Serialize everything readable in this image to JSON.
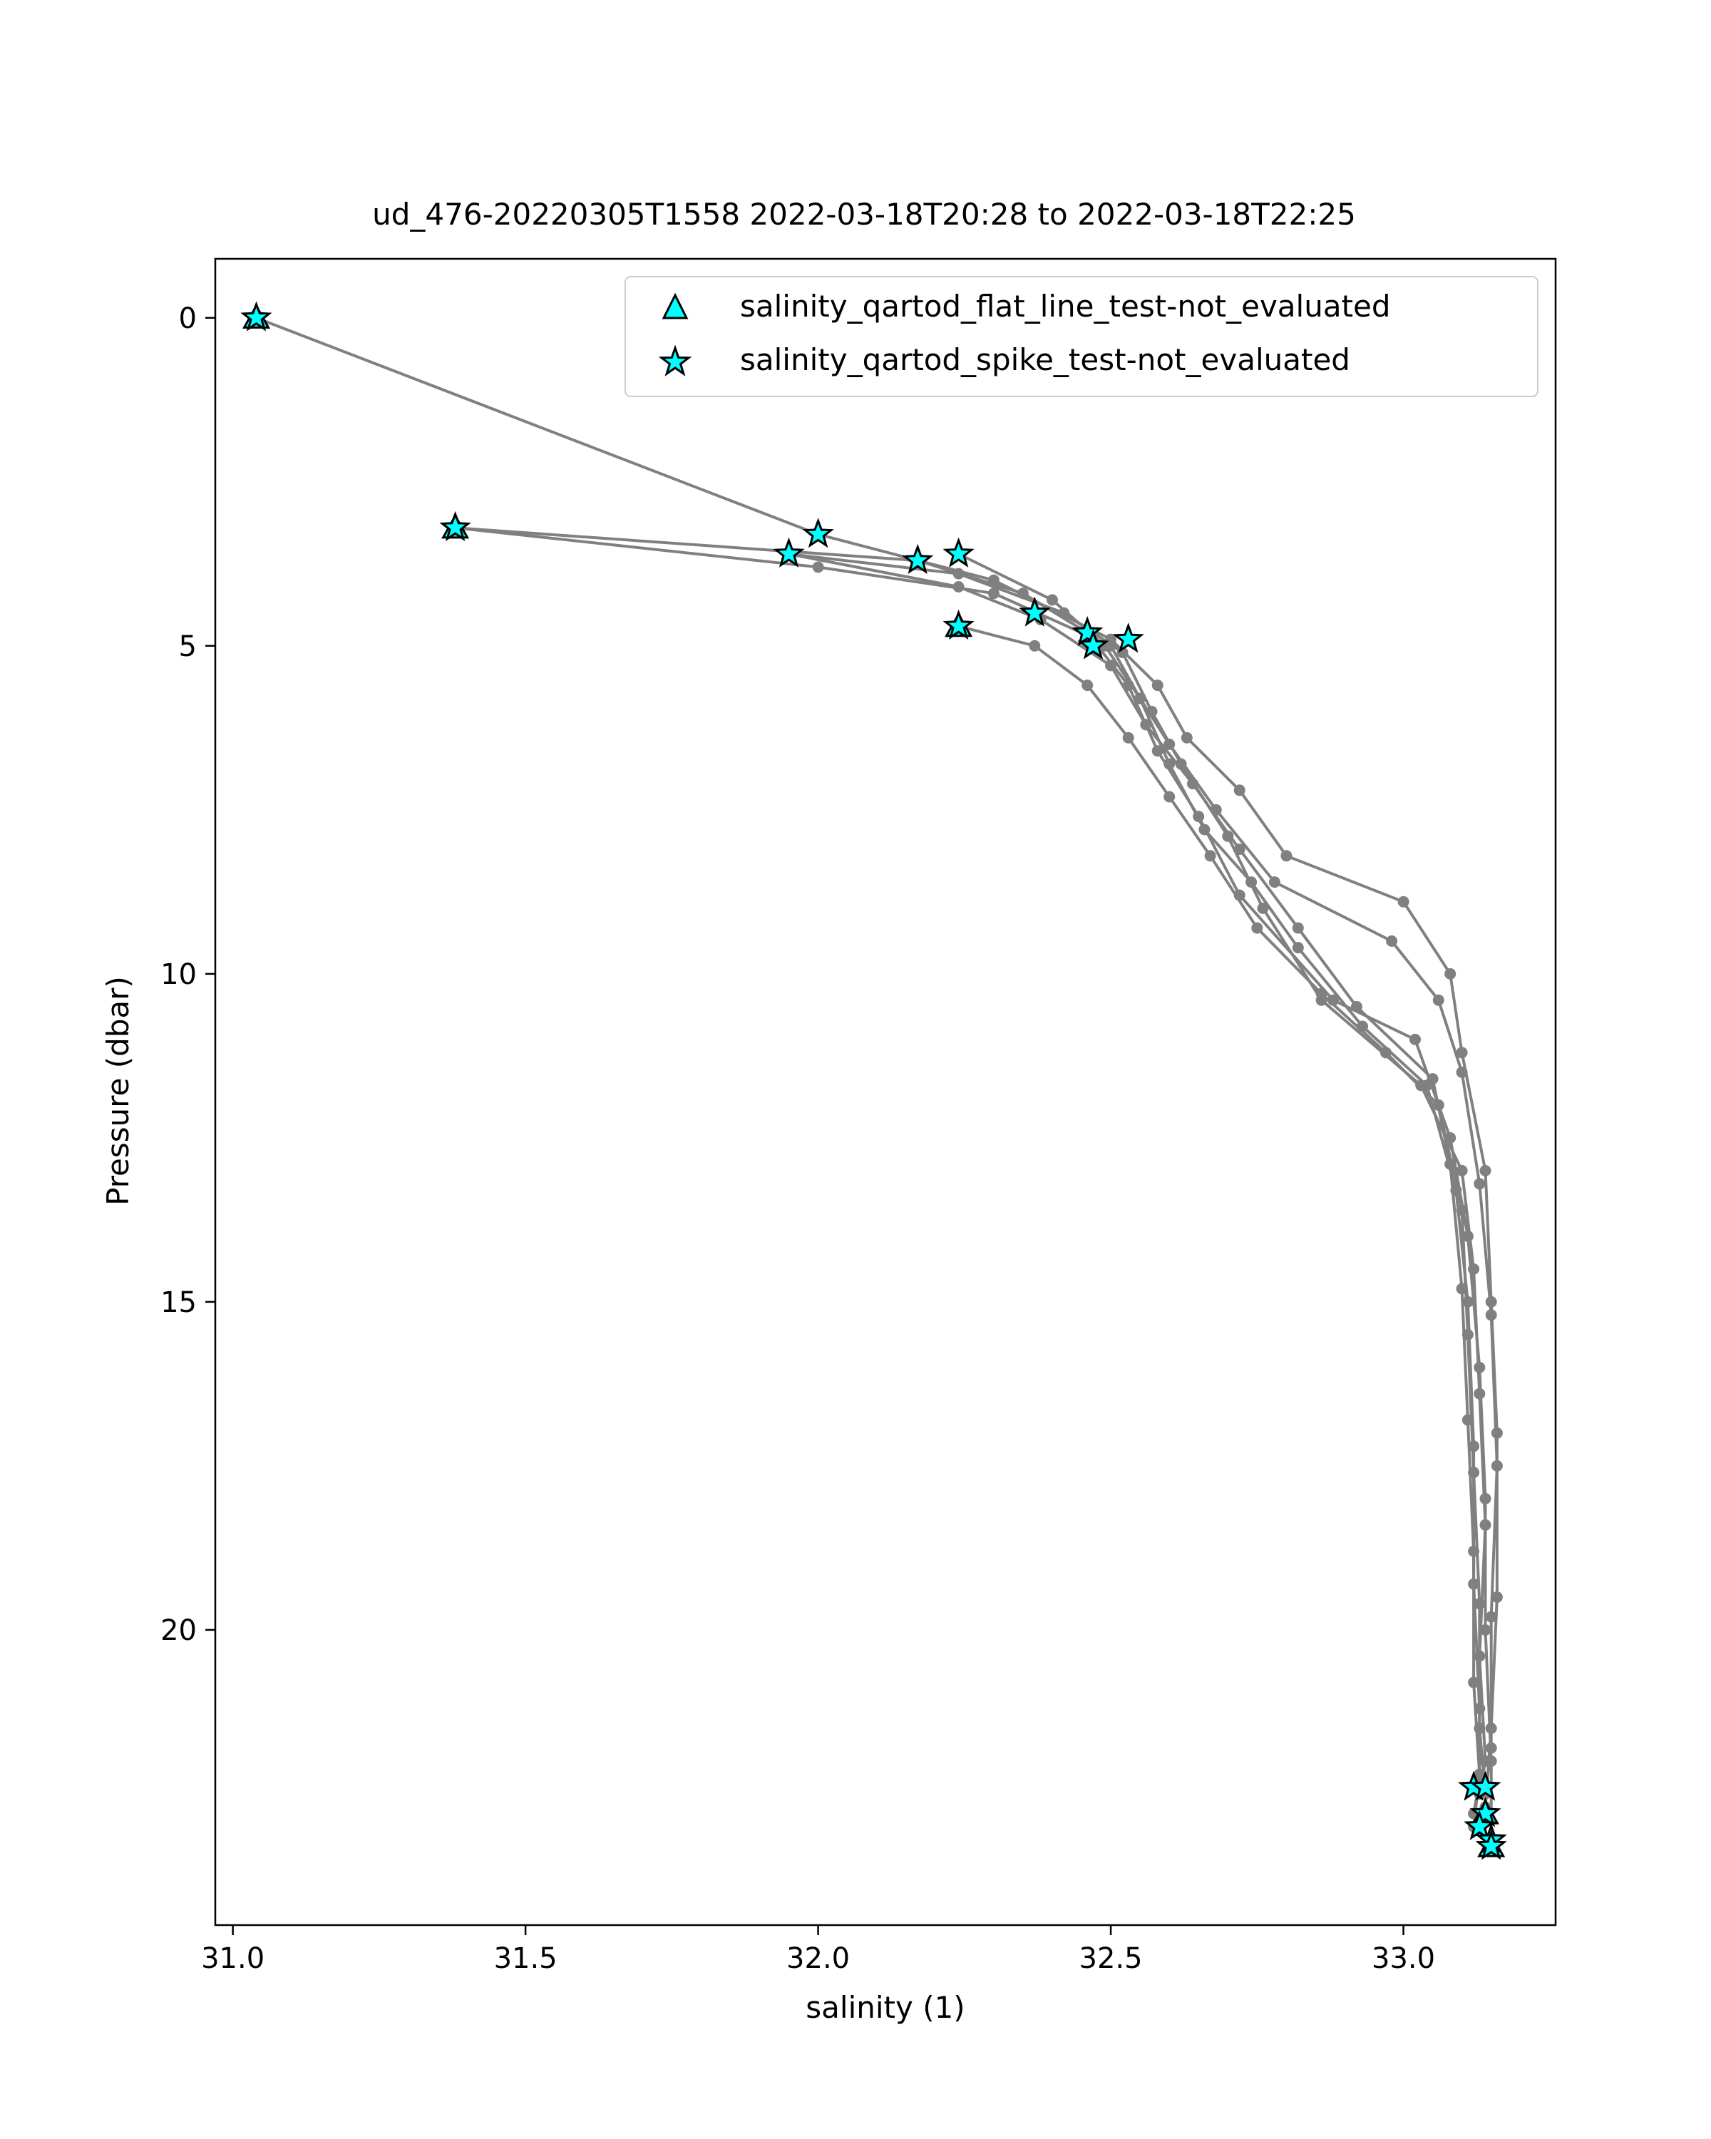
{
  "chart_data": {
    "type": "scatter",
    "title": "ud_476-20220305T1558 2022-03-18T20:28 to 2022-03-18T22:25",
    "xlabel": "salinity (1)",
    "ylabel": "Pressure (dbar)",
    "xlim": [
      30.97,
      33.26
    ],
    "ylim": [
      24.5,
      -0.9
    ],
    "y_inverted": true,
    "grid": false,
    "legend_position": "top-right",
    "xticks": [
      {
        "value": 31.0,
        "label": "31.0"
      },
      {
        "value": 31.5,
        "label": "31.5"
      },
      {
        "value": 32.0,
        "label": "32.0"
      },
      {
        "value": 32.5,
        "label": "32.5"
      },
      {
        "value": 33.0,
        "label": "33.0"
      }
    ],
    "yticks": [
      {
        "value": 0,
        "label": "0"
      },
      {
        "value": 5,
        "label": "5"
      },
      {
        "value": 10,
        "label": "10"
      },
      {
        "value": 15,
        "label": "15"
      },
      {
        "value": 20,
        "label": "20"
      }
    ],
    "line_color": "#808080",
    "marker_color": "#00ffff",
    "legend": [
      {
        "label": "salinity_qartod_flat_line_test-not_evaluated",
        "marker": "triangle"
      },
      {
        "label": "salinity_qartod_spike_test-not_evaluated",
        "marker": "star"
      }
    ],
    "series": [
      {
        "x": [
          31.04,
          32.0,
          32.3,
          32.5,
          32.58,
          32.63,
          32.72,
          32.8,
          33.0,
          33.08,
          33.1,
          33.14,
          33.15,
          33.16,
          33.16,
          33.15,
          33.14
        ],
        "y": [
          0.0,
          3.3,
          4.0,
          4.9,
          5.6,
          6.4,
          7.2,
          8.2,
          8.9,
          10.0,
          11.2,
          13.0,
          15.0,
          17.0,
          19.5,
          21.5,
          22.7
        ]
      },
      {
        "x": [
          31.38,
          32.0,
          32.3,
          32.5,
          32.55,
          32.6,
          32.68,
          32.78,
          32.98,
          33.06,
          33.1,
          33.13,
          33.15,
          33.16,
          33.15,
          33.15,
          33.14
        ],
        "y": [
          3.2,
          3.8,
          4.2,
          5.0,
          5.8,
          6.5,
          7.5,
          8.6,
          9.5,
          10.4,
          11.5,
          13.2,
          15.2,
          17.5,
          19.8,
          21.8,
          22.5
        ]
      },
      {
        "x": [
          31.38,
          32.17,
          32.35,
          32.46,
          32.53,
          32.58,
          32.65,
          32.72,
          32.88,
          33.02,
          33.08,
          33.11,
          33.13,
          33.14,
          33.14,
          33.15,
          33.15
        ],
        "y": [
          3.2,
          3.7,
          4.2,
          4.8,
          5.6,
          6.6,
          7.6,
          8.8,
          10.4,
          11.0,
          12.5,
          14.0,
          16.0,
          18.0,
          20.0,
          22.0,
          23.2
        ]
      },
      {
        "x": [
          31.95,
          32.24,
          32.42,
          32.52,
          32.57,
          32.62,
          32.7,
          32.76,
          32.86,
          33.03,
          33.1,
          33.12,
          33.13,
          33.14,
          33.13,
          33.14,
          33.13
        ],
        "y": [
          3.6,
          3.9,
          4.5,
          5.1,
          6.0,
          6.8,
          7.9,
          9.0,
          10.4,
          11.7,
          13.0,
          14.5,
          16.4,
          18.4,
          20.4,
          22.0,
          22.5
        ]
      },
      {
        "x": [
          31.95,
          32.24,
          32.38,
          32.5,
          32.56,
          32.64,
          32.72,
          32.82,
          32.92,
          33.05,
          33.08,
          33.1,
          33.11,
          33.12,
          33.12,
          33.13,
          33.12
        ],
        "y": [
          3.6,
          4.1,
          4.6,
          5.3,
          6.2,
          7.1,
          8.1,
          9.3,
          10.5,
          11.6,
          12.9,
          14.8,
          16.8,
          18.8,
          20.8,
          22.2,
          23.0
        ]
      },
      {
        "x": [
          32.24,
          32.4,
          32.49,
          32.55,
          32.6,
          32.66,
          32.74,
          32.82,
          32.93,
          33.04,
          33.09,
          33.11,
          33.12,
          33.12,
          33.13,
          33.13,
          33.12
        ],
        "y": [
          3.6,
          4.3,
          5.0,
          5.8,
          6.8,
          7.8,
          8.6,
          9.6,
          10.8,
          11.7,
          13.3,
          15.0,
          17.2,
          19.3,
          21.2,
          22.3,
          22.8
        ]
      },
      {
        "x": [
          32.24,
          32.37,
          32.46,
          32.53,
          32.6,
          32.67,
          32.75,
          32.86,
          32.97,
          33.06,
          33.1,
          33.11,
          33.12,
          33.13,
          33.13,
          33.14,
          33.13
        ],
        "y": [
          4.7,
          5.0,
          5.6,
          6.4,
          7.3,
          8.2,
          9.3,
          10.3,
          11.2,
          12.0,
          13.6,
          15.5,
          17.6,
          19.6,
          21.5,
          22.5,
          22.4
        ]
      }
    ],
    "spike_test_points": [
      {
        "x": 31.04,
        "y": 0.0
      },
      {
        "x": 31.38,
        "y": 3.2
      },
      {
        "x": 31.95,
        "y": 3.6
      },
      {
        "x": 32.0,
        "y": 3.3
      },
      {
        "x": 32.17,
        "y": 3.7
      },
      {
        "x": 32.24,
        "y": 3.6
      },
      {
        "x": 32.24,
        "y": 4.7
      },
      {
        "x": 32.37,
        "y": 4.5
      },
      {
        "x": 32.46,
        "y": 4.8
      },
      {
        "x": 32.47,
        "y": 5.0
      },
      {
        "x": 32.53,
        "y": 4.9
      },
      {
        "x": 33.12,
        "y": 22.4
      },
      {
        "x": 33.14,
        "y": 22.4
      },
      {
        "x": 33.14,
        "y": 22.8
      },
      {
        "x": 33.13,
        "y": 23.0
      },
      {
        "x": 33.15,
        "y": 23.2
      },
      {
        "x": 33.15,
        "y": 23.3
      }
    ],
    "flat_line_test_points": [
      {
        "x": 31.04,
        "y": 0.0
      },
      {
        "x": 31.38,
        "y": 3.2
      },
      {
        "x": 32.24,
        "y": 4.7
      },
      {
        "x": 33.14,
        "y": 22.8
      },
      {
        "x": 33.15,
        "y": 23.3
      }
    ]
  }
}
